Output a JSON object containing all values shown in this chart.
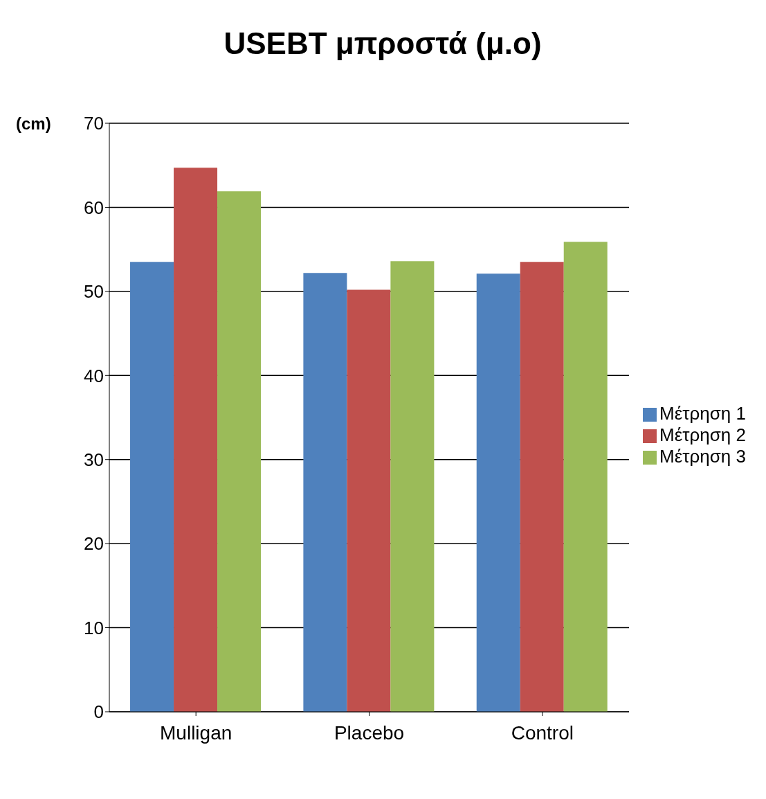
{
  "chart_data": {
    "type": "bar",
    "title": "USEBT μπροστά (μ.ο)",
    "ylabel": "(cm)",
    "categories": [
      "Mulligan",
      "Placebo",
      "Control"
    ],
    "series": [
      {
        "name": "Μέτρηση 1",
        "color": "#4f81bd",
        "values": [
          53.5,
          52.2,
          52.1
        ]
      },
      {
        "name": "Μέτρηση 2",
        "color": "#c0504d",
        "values": [
          64.7,
          50.2,
          53.5
        ]
      },
      {
        "name": "Μέτρηση 3",
        "color": "#9bbb59",
        "values": [
          61.9,
          53.6,
          55.9
        ]
      }
    ],
    "ylim": [
      0,
      70
    ],
    "yticks": [
      0,
      10,
      20,
      30,
      40,
      50,
      60,
      70
    ],
    "grid": "y",
    "legend": "right"
  }
}
